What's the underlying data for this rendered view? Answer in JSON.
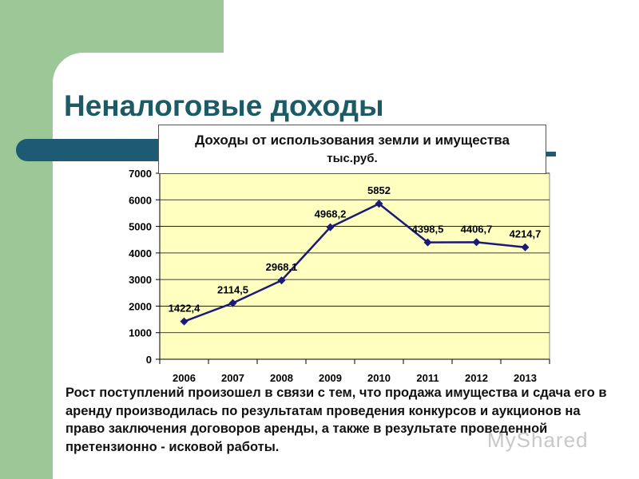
{
  "slide_title": "Неналоговые доходы",
  "chart_title_line1": "Доходы от использования земли и имущества",
  "chart_title_line2": "тыс.руб.",
  "caption": "Рост поступлений произошел в связи с тем, что продажа имущества и сдача его в аренду производилась по результатам проведения конкурсов и аукционов на право заключения договоров аренды, а также в результате проведенной претензионно - исковой работы.",
  "watermark": "MyShared",
  "chart_data": {
    "type": "line",
    "title": "Доходы от использования земли и имущества",
    "ylabel": "тыс.руб.",
    "categories": [
      "2006",
      "2007",
      "2008",
      "2009",
      "2010",
      "2011",
      "2012",
      "2013"
    ],
    "values": [
      1422.4,
      2114.5,
      2968.1,
      4968.2,
      5852,
      4398.5,
      4406.7,
      4214.7
    ],
    "data_labels": [
      "1422,4",
      "2114,5",
      "2968,1",
      "4968,2",
      "5852",
      "4398,5",
      "4406,7",
      "4214,7"
    ],
    "ylim": [
      0,
      7000
    ],
    "yticks": [
      0,
      1000,
      2000,
      3000,
      4000,
      5000,
      6000,
      7000
    ],
    "grid": true,
    "plot_bg": "#ffffc0",
    "line_color": "#1a1a7a"
  }
}
